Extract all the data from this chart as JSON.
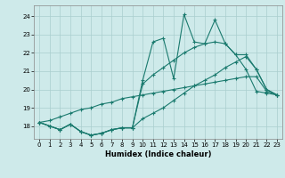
{
  "xlabel": "Humidex (Indice chaleur)",
  "bg_color": "#ceeaea",
  "grid_color": "#aacece",
  "line_color": "#1a7a6e",
  "xlim": [
    -0.5,
    23.5
  ],
  "ylim": [
    17.3,
    24.6
  ],
  "yticks": [
    18,
    19,
    20,
    21,
    22,
    23,
    24
  ],
  "xticks": [
    0,
    1,
    2,
    3,
    4,
    5,
    6,
    7,
    8,
    9,
    10,
    11,
    12,
    13,
    14,
    15,
    16,
    17,
    18,
    19,
    20,
    21,
    22,
    23
  ],
  "series": [
    [
      18.2,
      18.0,
      17.8,
      18.1,
      17.7,
      17.5,
      17.6,
      17.8,
      17.9,
      17.9,
      20.5,
      22.6,
      22.8,
      20.6,
      24.1,
      22.6,
      22.5,
      23.8,
      22.5,
      21.9,
      21.1,
      19.9,
      19.8,
      19.7
    ],
    [
      18.2,
      18.0,
      17.8,
      18.1,
      17.7,
      17.5,
      17.6,
      17.8,
      17.9,
      17.9,
      20.3,
      20.8,
      21.2,
      21.6,
      22.0,
      22.3,
      22.5,
      22.6,
      22.5,
      21.9,
      21.9,
      21.1,
      20.0,
      19.7
    ],
    [
      18.2,
      18.0,
      17.8,
      18.1,
      17.7,
      17.5,
      17.6,
      17.8,
      17.9,
      17.9,
      18.4,
      18.7,
      19.0,
      19.4,
      19.8,
      20.2,
      20.5,
      20.8,
      21.2,
      21.5,
      21.8,
      21.1,
      20.0,
      19.7
    ],
    [
      18.2,
      18.3,
      18.5,
      18.7,
      18.9,
      19.0,
      19.2,
      19.3,
      19.5,
      19.6,
      19.7,
      19.8,
      19.9,
      20.0,
      20.1,
      20.2,
      20.3,
      20.4,
      20.5,
      20.6,
      20.7,
      20.7,
      19.9,
      19.7
    ]
  ]
}
